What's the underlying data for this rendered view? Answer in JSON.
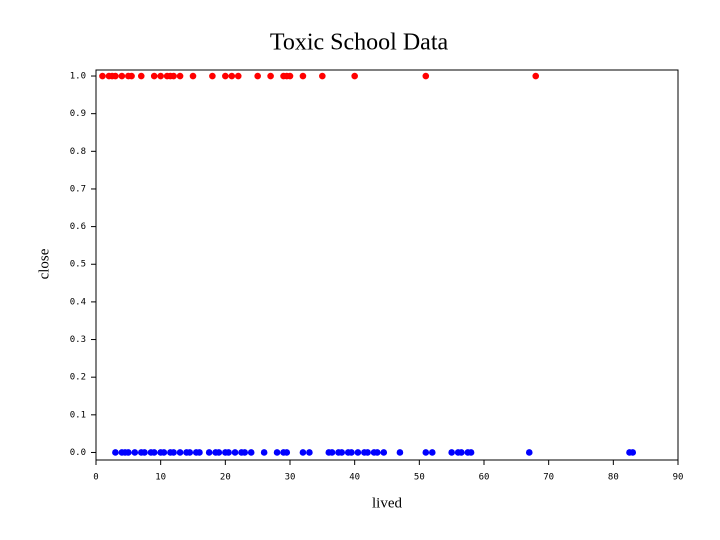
{
  "chart_data": {
    "type": "scatter",
    "title": "Toxic School Data",
    "x_label": "lived",
    "y_label": "close",
    "xlim": [
      0,
      90
    ],
    "ylim": [
      -0.02,
      1.016
    ],
    "xticks": [
      0,
      10,
      20,
      30,
      40,
      50,
      60,
      70,
      80,
      90
    ],
    "yticks": [
      {
        "value": 0,
        "label": "0.0"
      },
      0.1,
      0.2,
      0.3,
      0.4,
      0.5,
      0.6,
      0.7,
      0.8,
      0.9,
      {
        "value": 1,
        "label": "1.0"
      }
    ],
    "series": [
      {
        "color": "#ff0000",
        "x": [
          1,
          2,
          2.5,
          3,
          4,
          5,
          5.5,
          7,
          9,
          10,
          11,
          11.5,
          12,
          13,
          15,
          18,
          20,
          21,
          22,
          25,
          27,
          29,
          29.5,
          30,
          32,
          35,
          40,
          51,
          68
        ],
        "values": [
          1,
          1,
          1,
          1,
          1,
          1,
          1,
          1,
          1,
          1,
          1,
          1,
          1,
          1,
          1,
          1,
          1,
          1,
          1,
          1,
          1,
          1,
          1,
          1,
          1,
          1,
          1,
          1,
          1
        ]
      },
      {
        "color": "#0000ff",
        "x": [
          3,
          4,
          4.5,
          5,
          6,
          7,
          7.5,
          8.5,
          9,
          10,
          10.5,
          11.5,
          12,
          13,
          14,
          14.5,
          15.5,
          16,
          17.5,
          18.5,
          19,
          20,
          20.5,
          21.5,
          22.5,
          23,
          24,
          26,
          28,
          29,
          29.5,
          32,
          33,
          36,
          36.5,
          37.5,
          38,
          39,
          39.5,
          40.5,
          41.5,
          42,
          43,
          43.5,
          44.5,
          47,
          51,
          52,
          55,
          56,
          56.5,
          57.5,
          58,
          67,
          82.5,
          83
        ],
        "values": [
          0,
          0,
          0,
          0,
          0,
          0,
          0,
          0,
          0,
          0,
          0,
          0,
          0,
          0,
          0,
          0,
          0,
          0,
          0,
          0,
          0,
          0,
          0,
          0,
          0,
          0,
          0,
          0,
          0,
          0,
          0,
          0,
          0,
          0,
          0,
          0,
          0,
          0,
          0,
          0,
          0,
          0,
          0,
          0,
          0,
          0,
          0,
          0,
          0,
          0,
          0,
          0,
          0,
          0,
          0,
          0
        ]
      }
    ]
  }
}
